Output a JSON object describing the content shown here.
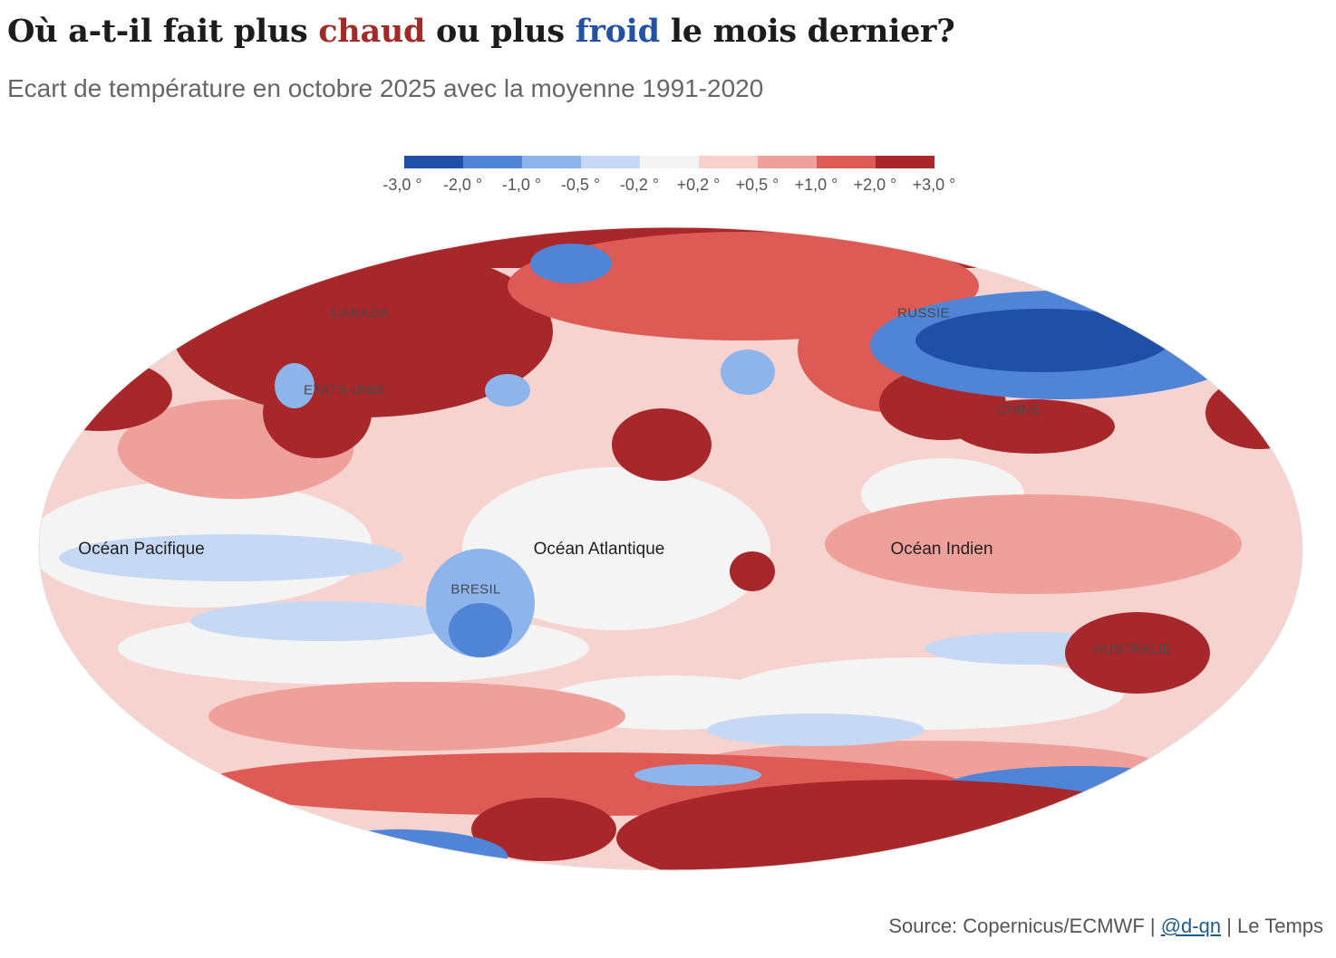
{
  "title": {
    "before": "Où a-t-il fait plus ",
    "hot": "chaud",
    "middle": " ou plus ",
    "cold": "froid",
    "after": " le mois dernier?"
  },
  "subtitle": "Ecart de température en octobre 2025 avec la moyenne 1991-2020",
  "legend": {
    "labels": [
      "-3,0 °",
      "-2,0 °",
      "-1,0 °",
      "-0,5 °",
      "-0,2 °",
      "+0,2 °",
      "+0,5 °",
      "+1,0 °",
      "+2,0 °",
      "+3,0 °"
    ],
    "colors": [
      "#1f4fa6",
      "#4f84d6",
      "#8db5ec",
      "#c5d8f4",
      "#f4f4f4",
      "#f8d0cc",
      "#f0a09a",
      "#dd5a55",
      "#a7272a"
    ]
  },
  "map": {
    "country_labels": [
      "CANADA",
      "ETATS-UNIS",
      "RUSSIE",
      "CHINE",
      "BRESIL",
      "AUSTRALIE"
    ],
    "ocean_labels": [
      "Océan Pacifique",
      "Océan Atlantique",
      "Océan Indien"
    ]
  },
  "source": {
    "prefix": "Source: Copernicus/ECMWF | ",
    "link": "@d-qn",
    "suffix": " | Le Temps"
  }
}
